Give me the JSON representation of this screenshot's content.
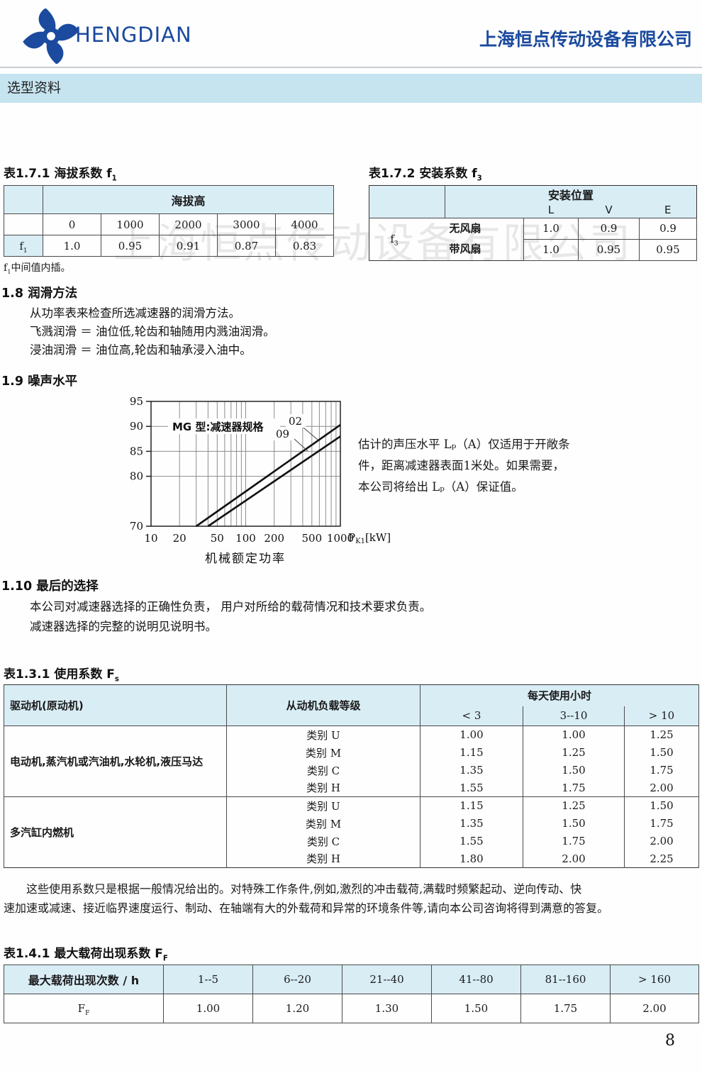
{
  "header": {
    "logo_text": "HENGDIAN",
    "company_name": "上海恒点传动设备有限公司"
  },
  "banner": {
    "title": "选型资料"
  },
  "watermark": "上海恒点传动设备有限公司",
  "t171": {
    "title_main": "表1.7.1 海拔系数 f",
    "title_sub": "1",
    "col_header": "海拔高",
    "row_head_main": "f",
    "row_head_sub": "1",
    "altitudes": [
      "0",
      "1000",
      "2000",
      "3000",
      "4000"
    ],
    "values": [
      "1.0",
      "0.95",
      "0.91",
      "0.87",
      "0.83"
    ],
    "note_main": "f",
    "note_sub": "1",
    "note_rest": "中间值内插。"
  },
  "t172": {
    "title_main": "表1.7.2 安装系数 f",
    "title_sub": "3",
    "col_header": "安装位置",
    "positions": [
      "L",
      "V",
      "E"
    ],
    "row_head_main": "f",
    "row_head_sub": "3",
    "rows": [
      {
        "label": "无风扇",
        "values": [
          "1.0",
          "0.9",
          "0.9"
        ]
      },
      {
        "label": "带风扇",
        "values": [
          "1.0",
          "0.95",
          "0.95"
        ]
      }
    ]
  },
  "s18": {
    "title": "1.8 润滑方法",
    "lines": [
      "从功率表来检查所选减速器的润滑方法。",
      "飞溅润滑 ＝ 油位低,轮齿和轴随用内溅油润滑。",
      "浸油润滑 ＝ 油位高,轮齿和轴承浸入油中。"
    ]
  },
  "s19": {
    "title": "1.9 噪声水平",
    "note_lines": [
      "估计的声压水平 Lₚ（A）仅适用于开敞条",
      "件，距离减速器表面1米处。如果需要，",
      "本公司将给出 Lₚ（A）保证值。"
    ]
  },
  "chart_data": {
    "type": "line",
    "x_scale": "log",
    "xlim": [
      10,
      1000
    ],
    "ylim": [
      70,
      95
    ],
    "x_ticks": [
      10,
      20,
      50,
      100,
      200,
      500,
      1000
    ],
    "y_ticks": [
      95,
      90,
      85,
      80,
      70
    ],
    "x_gridlines": [
      20,
      30,
      40,
      50,
      60,
      70,
      80,
      90,
      100,
      200,
      300,
      400,
      500,
      600,
      700,
      800,
      900
    ],
    "y_gridlines": [
      90,
      85,
      80
    ],
    "x_unit_main": "P",
    "x_unit_sub": "K1",
    "x_unit_rest": "[kW]",
    "xlabel": "机械额定功率",
    "ylabel": "",
    "inner_label": "MG 型:减速器规格",
    "grid": true,
    "series": [
      {
        "name": "02",
        "points": [
          [
            30,
            70
          ],
          [
            1000,
            90.3
          ]
        ]
      },
      {
        "name": "09",
        "points": [
          [
            40,
            70
          ],
          [
            1000,
            88
          ]
        ]
      }
    ]
  },
  "s110": {
    "title": "1.10 最后的选择",
    "lines": [
      "本公司对减速器选择的正确性负责， 用户对所给的载荷情况和技术要求负责。",
      "减速器选择的完整的说明见说明书。"
    ]
  },
  "t131": {
    "title_main": "表1.3.1 使用系数 F",
    "title_sub": "s",
    "col_driver": "驱动机(原动机)",
    "col_load": "从动机负载等级",
    "col_hours": "每天使用小时",
    "hours": [
      "< 3",
      "3--10",
      "> 10"
    ],
    "groups": [
      {
        "driver": "电动机,蒸汽机或汽油机,水轮机,液压马达",
        "rows": [
          {
            "cls": "类别 U",
            "values": [
              "1.00",
              "1.00",
              "1.25"
            ]
          },
          {
            "cls": "类别 M",
            "values": [
              "1.15",
              "1.25",
              "1.50"
            ]
          },
          {
            "cls": "类别 C",
            "values": [
              "1.35",
              "1.50",
              "1.75"
            ]
          },
          {
            "cls": "类别 H",
            "values": [
              "1.55",
              "1.75",
              "2.00"
            ]
          }
        ]
      },
      {
        "driver": "多汽缸内燃机",
        "rows": [
          {
            "cls": "类别 U",
            "values": [
              "1.15",
              "1.25",
              "1.50"
            ]
          },
          {
            "cls": "类别 M",
            "values": [
              "1.35",
              "1.50",
              "1.75"
            ]
          },
          {
            "cls": "类别 C",
            "values": [
              "1.55",
              "1.75",
              "2.00"
            ]
          },
          {
            "cls": "类别 H",
            "values": [
              "1.80",
              "2.00",
              "2.25"
            ]
          }
        ]
      }
    ],
    "footnote_line1": "这些使用系数只是根据一般情况给出的。对特殊工作条件,例如,激烈的冲击载荷,满载时频繁起动、逆向传动、快",
    "footnote_line2": "速加速或减速、接近临界速度运行、制动、在轴端有大的外载荷和异常的环境条件等,请向本公司咨询将得到满意的答复。"
  },
  "t141": {
    "title_main": "表1.4.1 最大载荷出现系数 F",
    "title_sub": "F",
    "row1_label": "最大载荷出现次数 / h",
    "ranges": [
      "1--5",
      "6--20",
      "21--40",
      "41--80",
      "81--160",
      "> 160"
    ],
    "row2_label_main": "F",
    "row2_label_sub": "F",
    "values": [
      "1.00",
      "1.20",
      "1.30",
      "1.50",
      "1.75",
      "2.00"
    ]
  },
  "page_number": "8",
  "colors": {
    "brand_blue": "#1b4a9e",
    "banner_bg": "#c6e4f0",
    "table_header_bg": "#d9edf5",
    "watermark_gray": "#e4e4e4"
  }
}
